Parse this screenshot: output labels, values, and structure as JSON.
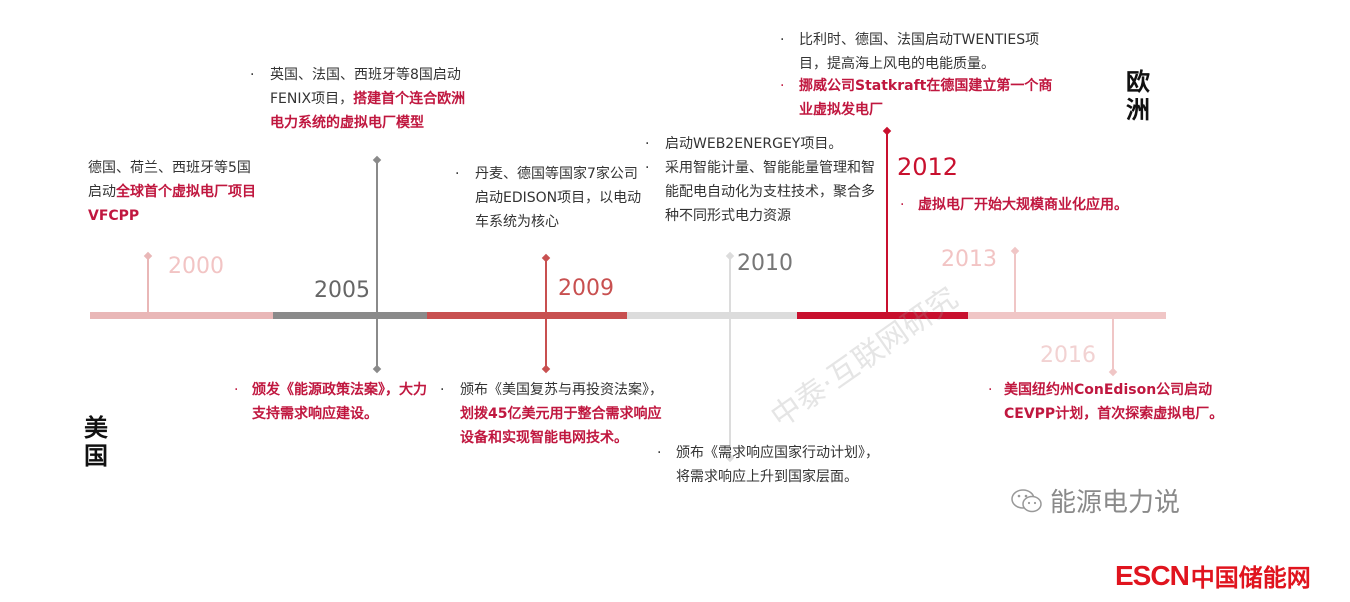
{
  "colors": {
    "accent": "#c8102e",
    "grey": "#8a8a8a",
    "light_pink": "#e9b7b7",
    "red": "#c85050",
    "light_grey": "#dcdcdc"
  },
  "regions": {
    "europe": "欧洲",
    "usa": "美国"
  },
  "years": {
    "y2000": "2000",
    "y2005": "2005",
    "y2009": "2009",
    "y2010": "2010",
    "y2012": "2012",
    "y2013": "2013",
    "y2016": "2016"
  },
  "europe_events": {
    "e2000": {
      "normal": "德国、荷兰、西班牙等5国启动",
      "highlight": "全球首个虚拟电厂项目VFCPP"
    },
    "e2005": {
      "normal": "英国、法国、西班牙等8国启动FENIX项目，",
      "highlight": "搭建首个连合欧洲电力系统的虚拟电厂模型"
    },
    "e2009": {
      "normal": "丹麦、德国等国家7家公司启动EDISON项目，以电动车系统为核心"
    },
    "e2010": {
      "item1": "启动WEB2ENERGEY项目。",
      "item2": "采用智能计量、智能能量管理和智能配电自动化为支柱技术，聚合多种不同形式电力资源"
    },
    "e2012": {
      "highlight": "虚拟电厂开始大规模商业化应用。"
    },
    "e2013": {
      "item1": "比利时、德国、法国启动TWENTIES项目，提高海上风电的电能质量。",
      "item2": "挪威公司Statkraft在德国建立第一个商业虚拟发电厂"
    }
  },
  "usa_events": {
    "u2005": {
      "highlight": "颁发《能源政策法案》，大力支持需求响应建设。"
    },
    "u2009": {
      "normal": "颁布《美国复苏与再投资法案》，",
      "highlight": "划拨45亿美元用于整合需求响应设备和实现智能电网技术。"
    },
    "u2010": {
      "normal": "颁布《需求响应国家行动计划》，将需求响应上升到国家层面。"
    },
    "u2016": {
      "highlight": "美国纽约州ConEdison公司启动CEVPP计划，首次探索虚拟电厂。"
    }
  },
  "watermark": "中泰·互联网研究",
  "wechat_account": "能源电力说",
  "logo": {
    "latin": "ESCN",
    "chinese": "中国储能网"
  }
}
